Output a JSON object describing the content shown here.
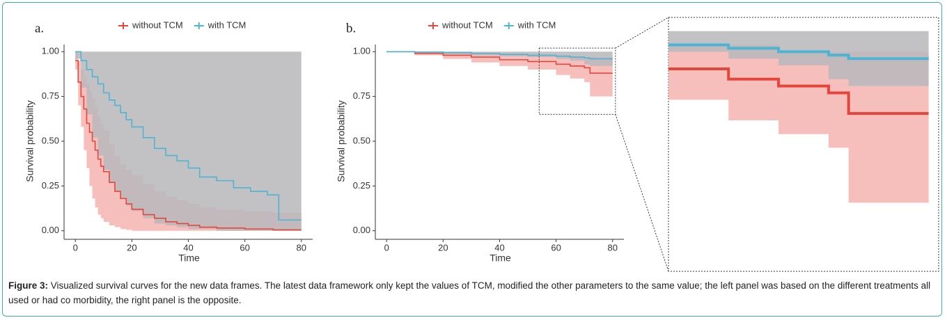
{
  "chart_data": [
    {
      "type": "line",
      "panel_label": "a.",
      "xlabel": "Time",
      "ylabel": "Survival probability",
      "xlim": [
        -3.5,
        84
      ],
      "ylim": [
        -0.04,
        1.04
      ],
      "xticks": [
        0,
        20,
        40,
        60,
        80
      ],
      "yticks": [
        {
          "value": 0,
          "label": "0.00"
        },
        {
          "value": 0.25,
          "label": "0.25"
        },
        {
          "value": 0.5,
          "label": "0.50"
        },
        {
          "value": 0.75,
          "label": "0.75"
        },
        {
          "value": 1,
          "label": "1.00"
        }
      ],
      "series": [
        {
          "name": "without TCM",
          "color": "#e5463c",
          "band_color": "#f5b4b0",
          "x": [
            0,
            1,
            2,
            3,
            4,
            5,
            6,
            7,
            8,
            9,
            10,
            12,
            14,
            16,
            18,
            20,
            24,
            28,
            32,
            36,
            40,
            44,
            50,
            60,
            70,
            80
          ],
          "values": [
            0.95,
            0.83,
            0.75,
            0.68,
            0.6,
            0.55,
            0.5,
            0.45,
            0.4,
            0.36,
            0.33,
            0.27,
            0.22,
            0.18,
            0.15,
            0.12,
            0.09,
            0.07,
            0.05,
            0.04,
            0.03,
            0.02,
            0.015,
            0.01,
            0.005,
            0.005
          ],
          "lower": [
            0.9,
            0.7,
            0.58,
            0.45,
            0.35,
            0.25,
            0.18,
            0.13,
            0.09,
            0.07,
            0.05,
            0.03,
            0.02,
            0.01,
            0.005,
            0,
            0,
            0,
            0,
            0,
            0,
            0,
            0,
            0,
            0,
            0
          ],
          "upper": [
            1,
            0.95,
            0.9,
            0.86,
            0.82,
            0.78,
            0.74,
            0.69,
            0.64,
            0.6,
            0.56,
            0.48,
            0.42,
            0.37,
            0.34,
            0.31,
            0.26,
            0.22,
            0.19,
            0.17,
            0.15,
            0.13,
            0.12,
            0.11,
            0.1,
            0.1
          ]
        },
        {
          "name": "with TCM",
          "color": "#4db4d4",
          "band_color": "#b7b7bb",
          "x": [
            0,
            2,
            4,
            6,
            8,
            10,
            12,
            14,
            16,
            18,
            20,
            24,
            28,
            32,
            36,
            40,
            44,
            50,
            56,
            62,
            68,
            72,
            80
          ],
          "values": [
            1,
            0.95,
            0.9,
            0.86,
            0.82,
            0.77,
            0.73,
            0.7,
            0.66,
            0.62,
            0.58,
            0.52,
            0.46,
            0.42,
            0.39,
            0.35,
            0.3,
            0.28,
            0.24,
            0.22,
            0.2,
            0.06,
            0.06
          ],
          "lower": [
            0.96,
            0.8,
            0.65,
            0.52,
            0.42,
            0.34,
            0.27,
            0.22,
            0.18,
            0.14,
            0.11,
            0.07,
            0.04,
            0.03,
            0.02,
            0.01,
            0.01,
            0,
            0,
            0,
            0,
            0,
            0
          ],
          "upper": [
            1,
            1,
            1,
            1,
            1,
            1,
            1,
            1,
            1,
            1,
            1,
            1,
            1,
            1,
            1,
            1,
            1,
            1,
            1,
            1,
            1,
            1,
            1
          ]
        }
      ]
    },
    {
      "type": "line",
      "panel_label": "b.",
      "xlabel": "Time",
      "ylabel": "Survival probability",
      "xlim": [
        -3.5,
        84
      ],
      "ylim": [
        -0.04,
        1.04
      ],
      "xticks": [
        0,
        20,
        40,
        60,
        80
      ],
      "yticks": [
        {
          "value": 0,
          "label": "0.00"
        },
        {
          "value": 0.25,
          "label": "0.25"
        },
        {
          "value": 0.5,
          "label": "0.50"
        },
        {
          "value": 0.75,
          "label": "0.75"
        },
        {
          "value": 1,
          "label": "1.00"
        }
      ],
      "zoom_xlim": [
        54,
        81
      ],
      "zoom_ylim": [
        0.65,
        1.02
      ],
      "series": [
        {
          "name": "without TCM",
          "color": "#e5463c",
          "band_color": "#f5b4b0",
          "x": [
            0,
            10,
            20,
            30,
            40,
            50,
            60,
            65,
            70,
            72,
            80
          ],
          "values": [
            1,
            0.99,
            0.98,
            0.97,
            0.955,
            0.945,
            0.93,
            0.92,
            0.91,
            0.88,
            0.88
          ],
          "lower": [
            1,
            0.98,
            0.96,
            0.94,
            0.92,
            0.9,
            0.87,
            0.85,
            0.83,
            0.75,
            0.75
          ],
          "upper": [
            1,
            1,
            0.995,
            0.99,
            0.985,
            0.98,
            0.98,
            0.97,
            0.97,
            0.97,
            0.97
          ]
        },
        {
          "name": "with TCM",
          "color": "#4db4d4",
          "band_color": "#b7b7bb",
          "x": [
            0,
            10,
            20,
            30,
            40,
            50,
            60,
            65,
            70,
            72,
            80
          ],
          "values": [
            1,
            0.998,
            0.995,
            0.99,
            0.985,
            0.98,
            0.975,
            0.97,
            0.965,
            0.96,
            0.96
          ],
          "lower": [
            1,
            0.99,
            0.985,
            0.98,
            0.975,
            0.97,
            0.96,
            0.95,
            0.93,
            0.92,
            0.92
          ],
          "upper": [
            1,
            1,
            1,
            1,
            1,
            1,
            1,
            1,
            1,
            1,
            1
          ]
        }
      ]
    }
  ],
  "caption": {
    "label": "Figure 3:",
    "text": " Visualized survival curves for the new data frames. The latest data framework only kept the values of TCM, modified the other parameters to the same value; the left panel was based on the different treatments all used or had co morbidity, the right panel is the opposite."
  }
}
